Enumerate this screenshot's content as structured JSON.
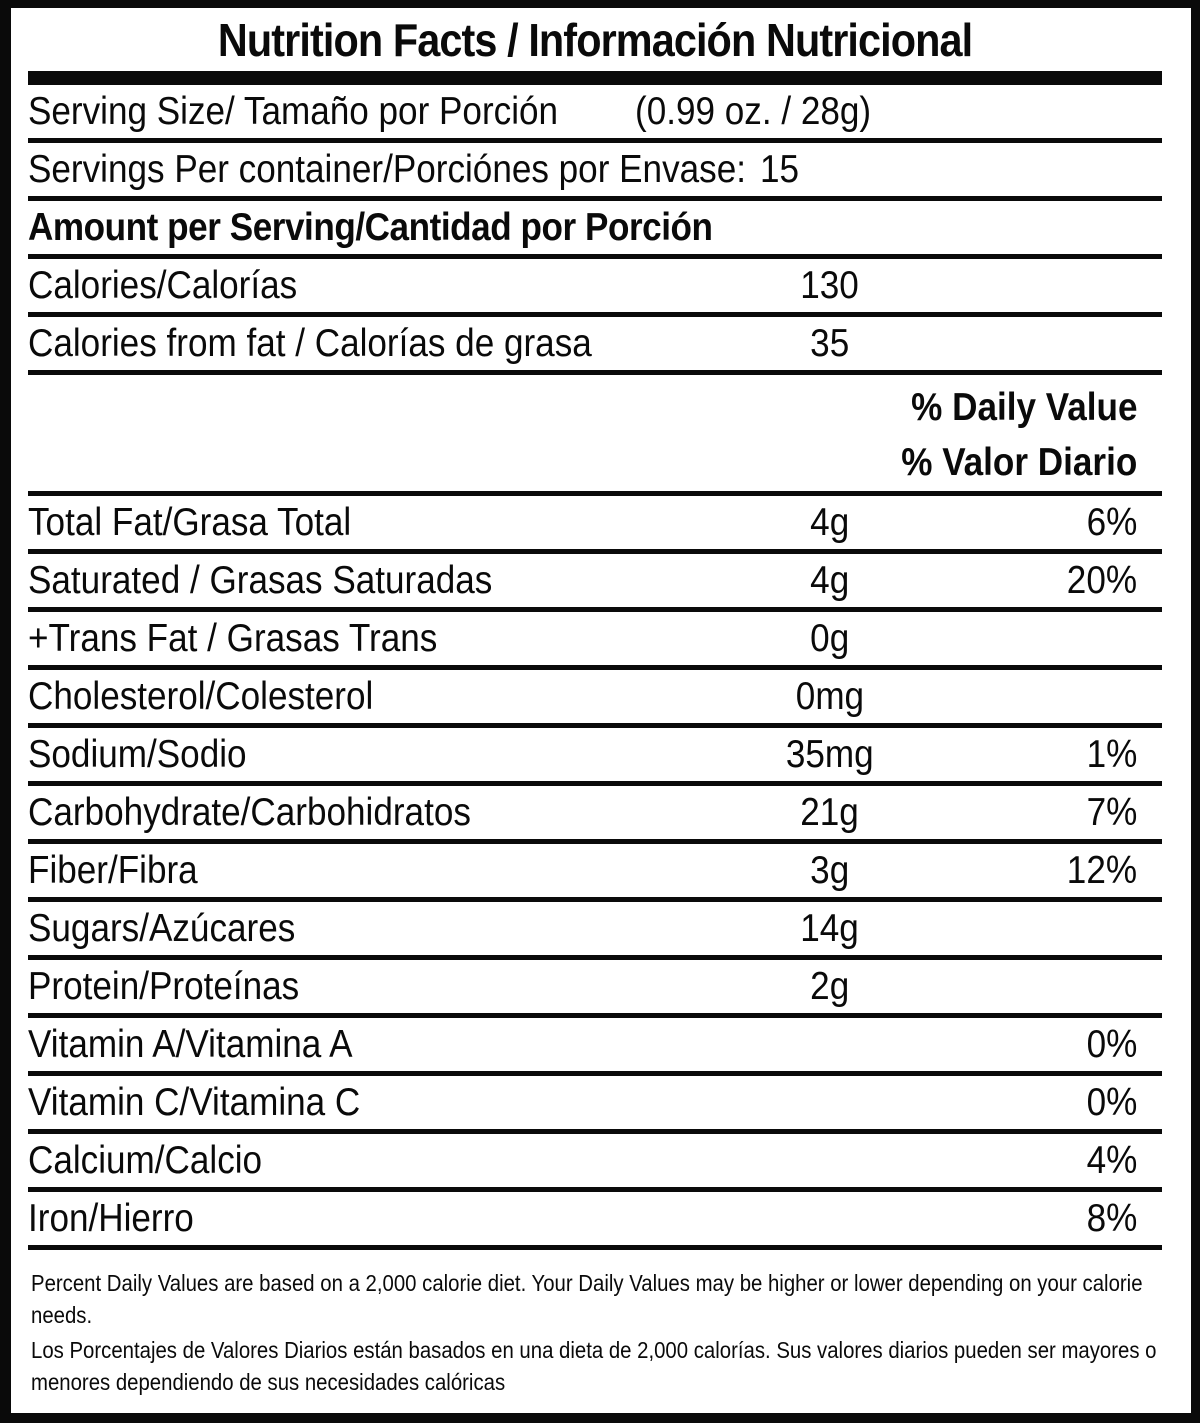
{
  "colors": {
    "ink": "#0a0a0a",
    "paper": "#ffffff"
  },
  "title": "Nutrition Facts / Información Nutricional",
  "serving_size": {
    "label": "Serving Size/ Tamaño por Porción",
    "value": "(0.99 oz. / 28g)"
  },
  "servings_per_container": {
    "label": "Servings Per container/Porciónes por Envase:",
    "value": "15"
  },
  "amount_per_serving_heading": "Amount per Serving/Cantidad por Porción",
  "calories": {
    "label": "Calories/Calorías",
    "value": "130"
  },
  "calories_from_fat": {
    "label": "Calories from fat / Calorías de grasa",
    "value": "35"
  },
  "daily_value_header": {
    "line1": "% Daily Value",
    "line2": "% Valor Diario"
  },
  "nutrients": [
    {
      "label": "Total Fat/Grasa Total",
      "amount": "4g",
      "dv": "6%"
    },
    {
      "label": "Saturated / Grasas Saturadas",
      "amount": "4g",
      "dv": "20%"
    },
    {
      "label": "+Trans Fat / Grasas Trans",
      "amount": "0g",
      "dv": ""
    },
    {
      "label": "Cholesterol/Colesterol",
      "amount": "0mg",
      "dv": ""
    },
    {
      "label": "Sodium/Sodio",
      "amount": "35mg",
      "dv": "1%"
    },
    {
      "label": "Carbohydrate/Carbohidratos",
      "amount": "21g",
      "dv": "7%"
    },
    {
      "label": "Fiber/Fibra",
      "amount": "3g",
      "dv": "12%"
    },
    {
      "label": "Sugars/Azúcares",
      "amount": "14g",
      "dv": ""
    },
    {
      "label": "Protein/Proteínas",
      "amount": "2g",
      "dv": ""
    },
    {
      "label": "Vitamin A/Vitamina A",
      "amount": "",
      "dv": "0%"
    },
    {
      "label": "Vitamin C/Vitamina C",
      "amount": "",
      "dv": "0%"
    },
    {
      "label": "Calcium/Calcio",
      "amount": "",
      "dv": "4%"
    },
    {
      "label": "Iron/Hierro",
      "amount": "",
      "dv": "8%"
    }
  ],
  "footnotes": {
    "english": "Percent Daily Values are based on a 2,000 calorie diet. Your Daily Values may be higher or lower depending on your calorie needs.",
    "spanish": "Los Porcentajes de Valores Diarios están basados en una dieta de 2,000 calorías. Sus valores diarios pueden ser mayores o menores dependiendo de sus necesidades calóricas"
  }
}
